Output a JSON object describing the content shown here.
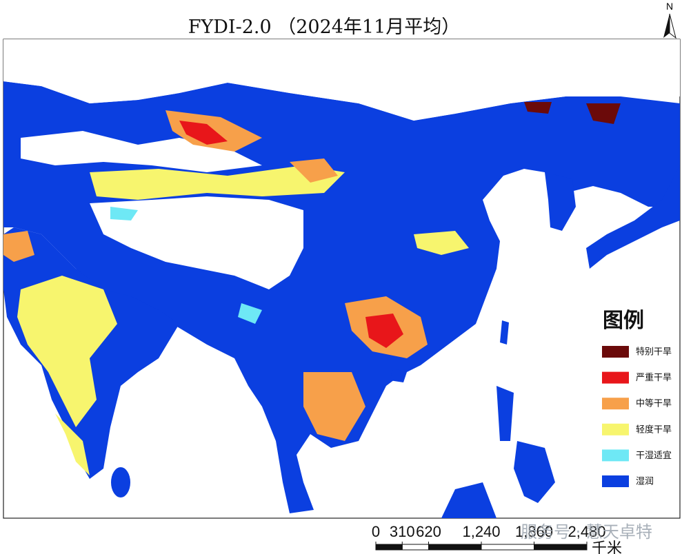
{
  "title": "FYDI-2.0 （2024年11月平均）",
  "north_arrow": "N",
  "legend": {
    "title": "图例",
    "items": [
      {
        "label": "特别干旱",
        "color": "#6b0a0a"
      },
      {
        "label": "严重干旱",
        "color": "#e8161a"
      },
      {
        "label": "中等干旱",
        "color": "#f7a04a"
      },
      {
        "label": "轻度干旱",
        "color": "#f7f56e"
      },
      {
        "label": "干湿适宜",
        "color": "#6ee8f5"
      },
      {
        "label": "湿润",
        "color": "#0b3fe0"
      }
    ]
  },
  "scale_bar": {
    "unit": "千米",
    "ticks": [
      0,
      310,
      620,
      {
        "value": 1240,
        "label": "1,240"
      },
      {
        "value": 1860,
        "label": "1,860"
      },
      {
        "value": 2480,
        "label": "2,480"
      }
    ]
  },
  "watermark": "服务号 · 慧天卓特"
}
